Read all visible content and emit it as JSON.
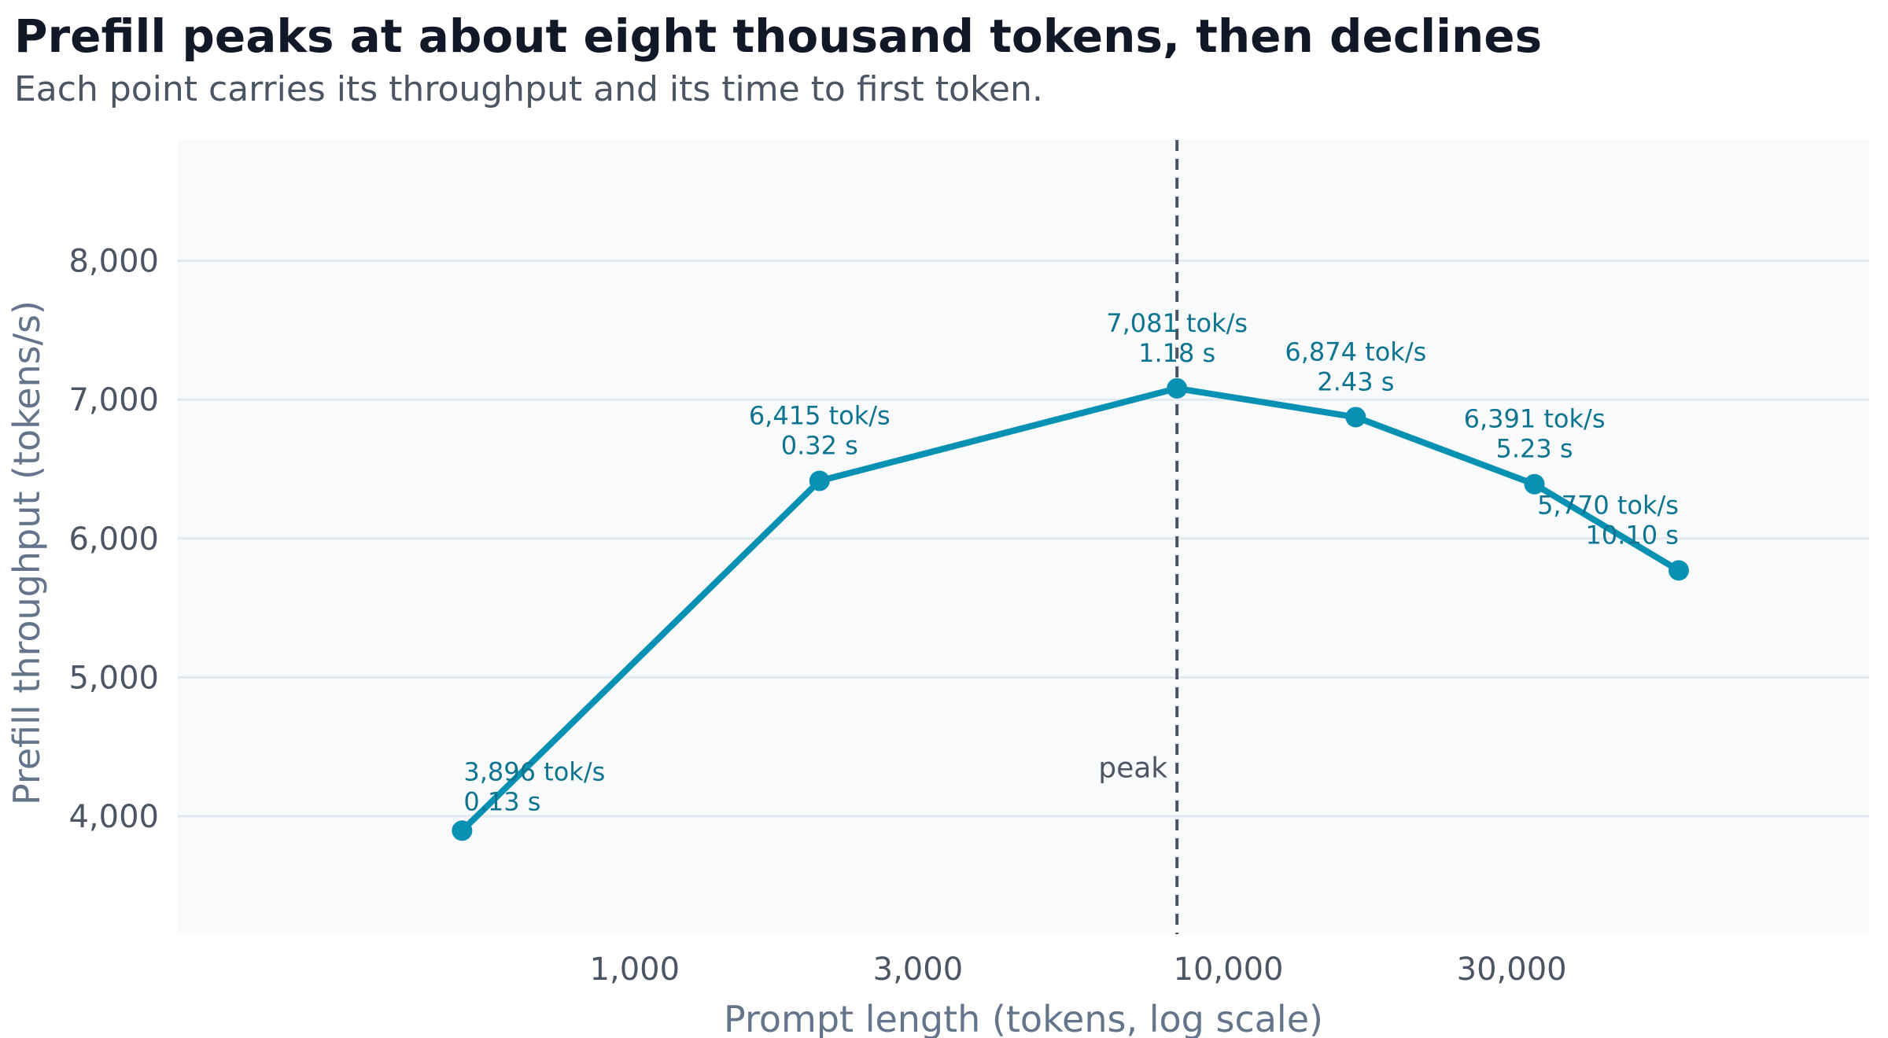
{
  "chart_data": {
    "type": "line",
    "title": "Prefill peaks at about eight thousand tokens, then declines",
    "subtitle": "Each point carries its throughput and its time to first token.",
    "xlabel": "Prompt length (tokens, log scale)",
    "ylabel": "Prefill throughput (tokens/s)",
    "x_scale": "log",
    "xlim": [
      170,
      120000
    ],
    "ylim": [
      3150,
      8870
    ],
    "x_ticks": [
      {
        "value": 1000,
        "label": "1,000"
      },
      {
        "value": 3000,
        "label": "3,000"
      },
      {
        "value": 10000,
        "label": "10,000"
      },
      {
        "value": 30000,
        "label": "30,000"
      }
    ],
    "y_ticks": [
      {
        "value": 4000,
        "label": "4,000"
      },
      {
        "value": 5000,
        "label": "5,000"
      },
      {
        "value": 6000,
        "label": "6,000"
      },
      {
        "value": 7000,
        "label": "7,000"
      },
      {
        "value": 8000,
        "label": "8,000"
      }
    ],
    "grid": {
      "horizontal": true,
      "vertical": false
    },
    "series": [
      {
        "color": "#0891b2",
        "points": [
          {
            "x": 512,
            "y": 3896,
            "throughput_label": "3,896 tok/s",
            "ttft_label": "0.13 s"
          },
          {
            "x": 2048,
            "y": 6415,
            "throughput_label": "6,415 tok/s",
            "ttft_label": "0.32 s"
          },
          {
            "x": 8192,
            "y": 7081,
            "throughput_label": "7,081 tok/s",
            "ttft_label": "1.18 s"
          },
          {
            "x": 16384,
            "y": 6874,
            "throughput_label": "6,874 tok/s",
            "ttft_label": "2.43 s"
          },
          {
            "x": 32768,
            "y": 6391,
            "throughput_label": "6,391 tok/s",
            "ttft_label": "5.23 s"
          },
          {
            "x": 57344,
            "y": 5770,
            "throughput_label": "5,770 tok/s",
            "ttft_label": "10.10 s"
          }
        ]
      }
    ],
    "annotations": [
      {
        "type": "vline",
        "x": 8192,
        "label": "peak",
        "style": "dashed",
        "color": "#4b5563"
      }
    ],
    "colors": {
      "plot_background": "#f8fafc",
      "grid": "#e2e8f0",
      "label_text": "#0e7490",
      "tick_text": "#4b5563",
      "axis_label": "#64748b"
    }
  }
}
